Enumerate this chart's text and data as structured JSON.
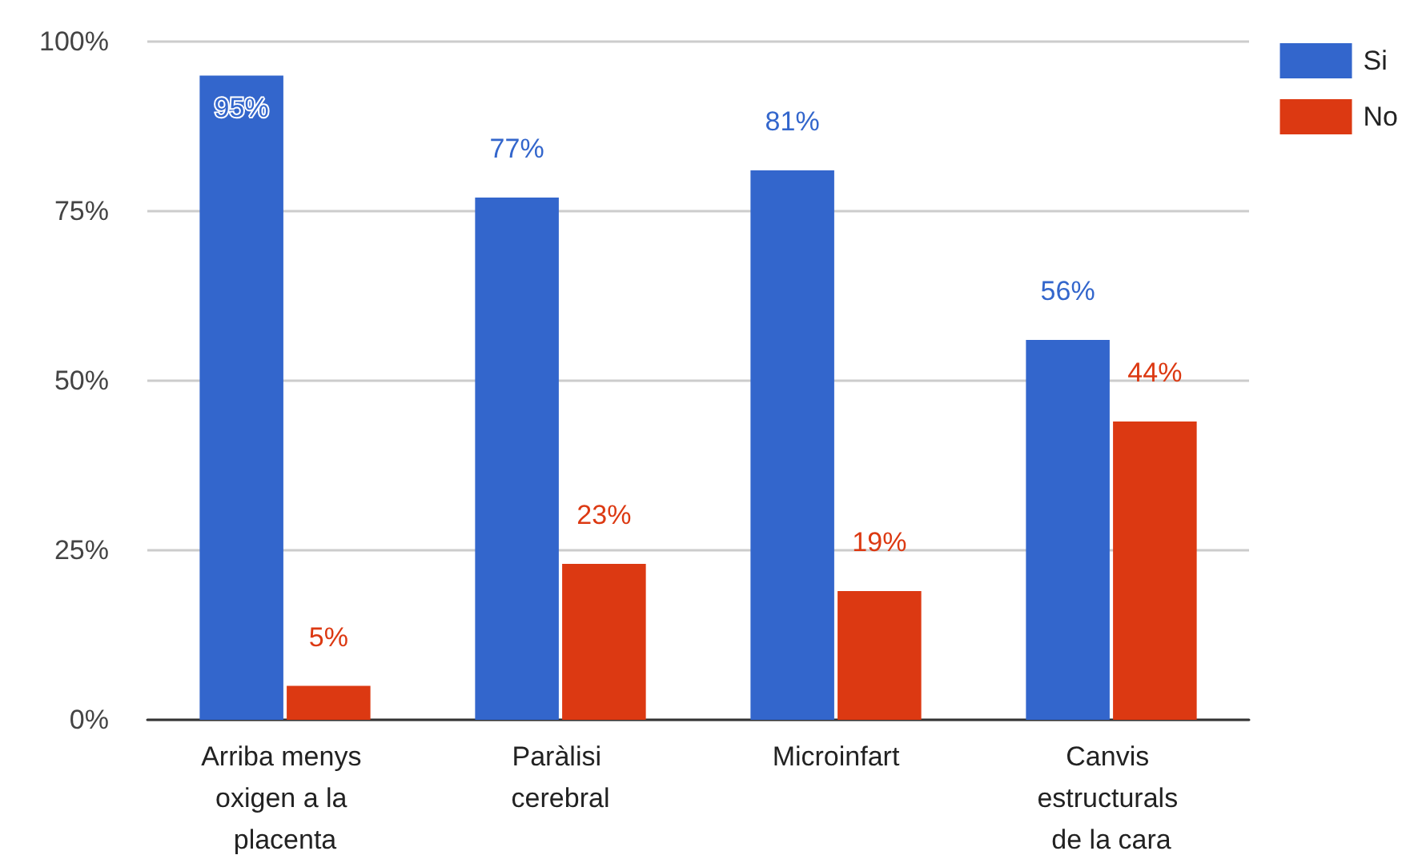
{
  "chart_data": {
    "type": "bar",
    "categories": [
      "Arriba menys oxigen a la placenta",
      "Paràlisi cerebral",
      "Microinfart",
      "Canvis estructurals de la cara"
    ],
    "series": [
      {
        "name": "Si",
        "color": "#3366cc",
        "values": [
          95,
          77,
          81,
          56
        ],
        "value_labels": [
          "95%",
          "77%",
          "81%",
          "56%"
        ]
      },
      {
        "name": "No",
        "color": "#dc3912",
        "values": [
          5,
          23,
          19,
          44
        ],
        "value_labels": [
          "5%",
          "23%",
          "19%",
          "44%"
        ]
      }
    ],
    "ylim": [
      0,
      100
    ],
    "yticks": [
      {
        "value": 0,
        "label": "0%"
      },
      {
        "value": 25,
        "label": "25%"
      },
      {
        "value": 50,
        "label": "50%"
      },
      {
        "value": 75,
        "label": "75%"
      },
      {
        "value": 100,
        "label": "100%"
      }
    ],
    "grid": "y",
    "legend": "top right"
  }
}
